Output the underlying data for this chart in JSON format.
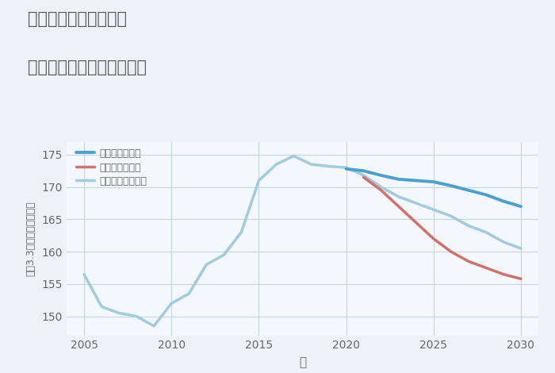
{
  "title_line1": "兵庫県西宮市小松町の",
  "title_line2": "中古マンションの価格推移",
  "xlabel": "年",
  "ylabel": "坪（3.3㎡）単価（万円）",
  "background_color": "#eef2f7",
  "plot_background": "#f4f7fb",
  "grid_color": "#c5d5e5",
  "ylim": [
    147,
    177
  ],
  "xlim": [
    2004,
    2031
  ],
  "yticks": [
    150,
    155,
    160,
    165,
    170,
    175
  ],
  "xticks": [
    2005,
    2010,
    2015,
    2020,
    2025,
    2030
  ],
  "good_scenario": {
    "label": "グッドシナリオ",
    "color": "#4a9fd4",
    "linewidth": 2.8,
    "years": [
      2020,
      2021,
      2022,
      2023,
      2024,
      2025,
      2026,
      2027,
      2028,
      2029,
      2030
    ],
    "values": [
      172.8,
      172.5,
      171.8,
      171.2,
      171.0,
      170.8,
      170.2,
      169.5,
      168.8,
      167.8,
      167.0
    ]
  },
  "bad_scenario": {
    "label": "バッドシナリオ",
    "color": "#d4706a",
    "linewidth": 2.5,
    "years": [
      2021,
      2022,
      2023,
      2024,
      2025,
      2026,
      2027,
      2028,
      2029,
      2030
    ],
    "values": [
      171.5,
      169.5,
      167.0,
      164.5,
      162.0,
      160.0,
      158.5,
      157.5,
      156.5,
      155.8
    ]
  },
  "normal_scenario": {
    "label": "ノーマルシナリオ",
    "color": "#a0cce0",
    "linewidth": 2.5,
    "years": [
      2005,
      2006,
      2007,
      2008,
      2009,
      2010,
      2011,
      2012,
      2013,
      2014,
      2015,
      2016,
      2017,
      2018,
      2019,
      2020,
      2021,
      2022,
      2023,
      2024,
      2025,
      2026,
      2027,
      2028,
      2029,
      2030
    ],
    "values": [
      156.5,
      151.5,
      150.5,
      150.0,
      148.5,
      152.0,
      153.5,
      158.0,
      159.5,
      163.0,
      171.0,
      173.5,
      174.8,
      173.5,
      173.2,
      173.0,
      171.8,
      170.0,
      168.5,
      167.5,
      166.5,
      165.5,
      164.0,
      163.0,
      161.5,
      160.5
    ]
  },
  "title_color": "#555555",
  "tick_color": "#666666",
  "label_color": "#666666"
}
